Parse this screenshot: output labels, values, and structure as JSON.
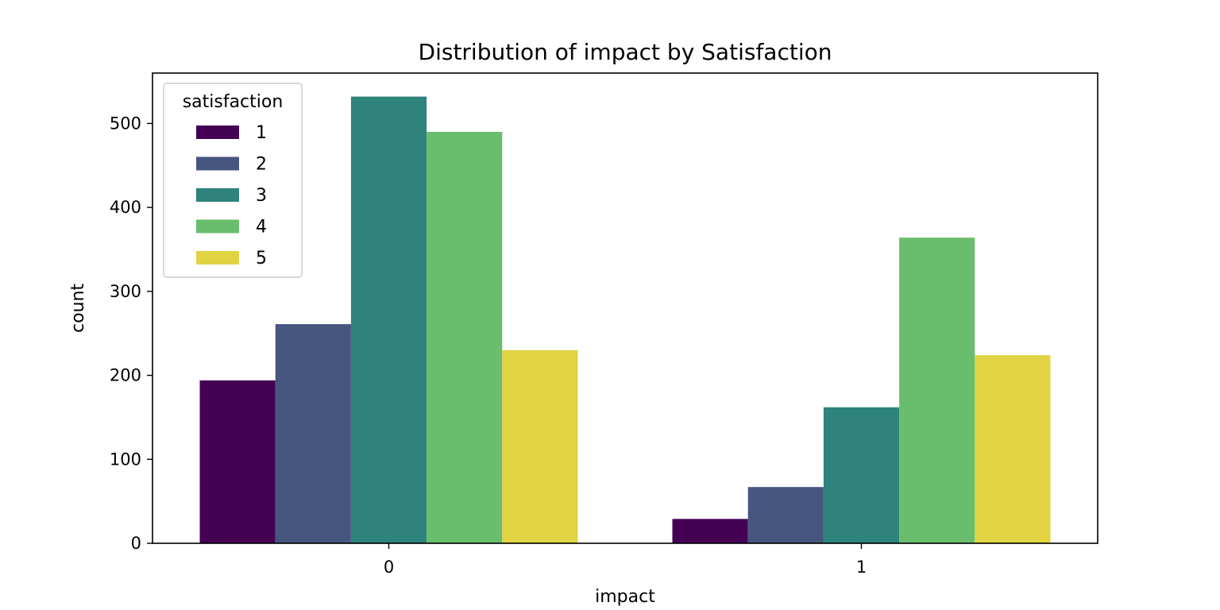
{
  "chart_data": {
    "type": "bar",
    "title": "Distribution of impact by Satisfaction",
    "xlabel": "impact",
    "ylabel": "count",
    "categories": [
      "0",
      "1"
    ],
    "ylim": [
      0,
      560
    ],
    "yticks": [
      0,
      100,
      200,
      300,
      400,
      500
    ],
    "grid": false,
    "legend": {
      "title": "satisfaction",
      "placement": "top-left"
    },
    "series": [
      {
        "name": "1",
        "color": "#440154",
        "values": [
          194,
          29
        ]
      },
      {
        "name": "2",
        "color": "#46567f",
        "values": [
          261,
          67
        ]
      },
      {
        "name": "3",
        "color": "#2e837c",
        "values": [
          532,
          162
        ]
      },
      {
        "name": "4",
        "color": "#6abd6d",
        "values": [
          490,
          364
        ]
      },
      {
        "name": "5",
        "color": "#e1d342",
        "values": [
          230,
          224
        ]
      }
    ]
  }
}
